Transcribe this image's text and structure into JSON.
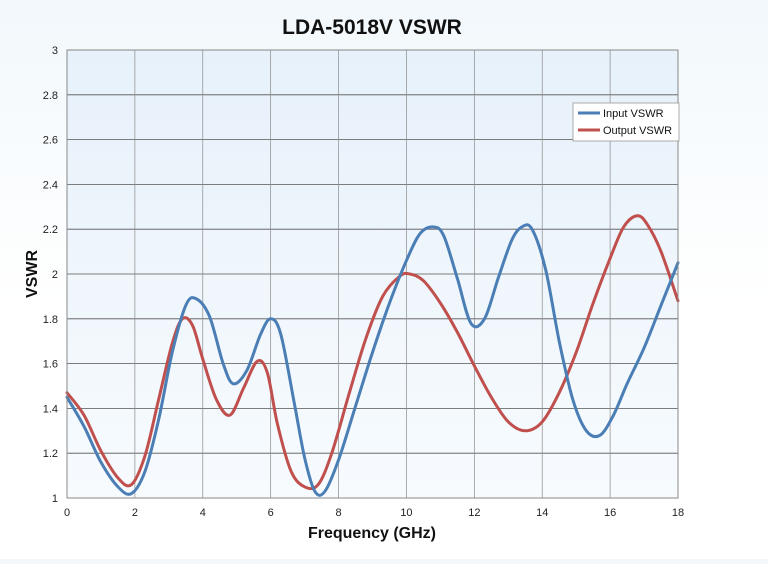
{
  "chart_data": {
    "type": "line",
    "title": "LDA-5018V VSWR",
    "xlabel": "Frequency (GHz)",
    "ylabel": "VSWR",
    "xlim": [
      0,
      18
    ],
    "ylim": [
      1,
      3
    ],
    "xticks": [
      "0",
      "2",
      "4",
      "6",
      "8",
      "10",
      "12",
      "14",
      "16",
      "18"
    ],
    "yticks": [
      "1",
      "1.2",
      "1.4",
      "1.6",
      "1.8",
      "2",
      "2.2",
      "2.4",
      "2.6",
      "2.8",
      "3"
    ],
    "grid": true,
    "legend_position": "top-right",
    "series": [
      {
        "name": "Input VSWR",
        "color": "#4a7eb5",
        "x": [
          0,
          0.5,
          1,
          1.5,
          1.9,
          2.3,
          2.7,
          3.1,
          3.5,
          3.8,
          4.2,
          4.6,
          4.9,
          5.3,
          5.7,
          6.0,
          6.3,
          6.7,
          7.0,
          7.3,
          7.6,
          8.0,
          8.5,
          9.0,
          9.5,
          10.0,
          10.4,
          10.8,
          11.1,
          11.5,
          11.9,
          12.3,
          12.7,
          13.1,
          13.4,
          13.7,
          14.1,
          14.5,
          14.9,
          15.3,
          15.7,
          16.1,
          16.5,
          17.0,
          17.5,
          18.0
        ],
        "values": [
          1.45,
          1.32,
          1.16,
          1.05,
          1.02,
          1.12,
          1.35,
          1.65,
          1.86,
          1.89,
          1.81,
          1.6,
          1.51,
          1.57,
          1.73,
          1.8,
          1.73,
          1.42,
          1.18,
          1.03,
          1.03,
          1.17,
          1.41,
          1.65,
          1.87,
          2.06,
          2.18,
          2.21,
          2.17,
          1.98,
          1.78,
          1.8,
          1.98,
          2.15,
          2.21,
          2.2,
          2.02,
          1.7,
          1.44,
          1.3,
          1.28,
          1.37,
          1.51,
          1.67,
          1.86,
          2.05
        ]
      },
      {
        "name": "Output VSWR",
        "color": "#c0504d",
        "x": [
          0,
          0.5,
          1,
          1.5,
          1.9,
          2.3,
          2.7,
          3.1,
          3.4,
          3.7,
          4.0,
          4.4,
          4.8,
          5.2,
          5.6,
          5.9,
          6.2,
          6.6,
          7.0,
          7.4,
          7.8,
          8.3,
          8.8,
          9.3,
          9.8,
          10.1,
          10.5,
          11.0,
          11.5,
          12.0,
          12.5,
          13.0,
          13.5,
          14.0,
          14.5,
          15.0,
          15.5,
          16.0,
          16.4,
          16.8,
          17.1,
          17.5,
          18.0
        ],
        "values": [
          1.47,
          1.37,
          1.21,
          1.09,
          1.06,
          1.19,
          1.44,
          1.69,
          1.8,
          1.77,
          1.62,
          1.44,
          1.37,
          1.49,
          1.61,
          1.56,
          1.33,
          1.12,
          1.05,
          1.06,
          1.2,
          1.46,
          1.71,
          1.9,
          1.99,
          2.0,
          1.97,
          1.87,
          1.74,
          1.59,
          1.45,
          1.34,
          1.3,
          1.34,
          1.47,
          1.65,
          1.87,
          2.07,
          2.21,
          2.26,
          2.22,
          2.1,
          1.88
        ]
      }
    ]
  }
}
